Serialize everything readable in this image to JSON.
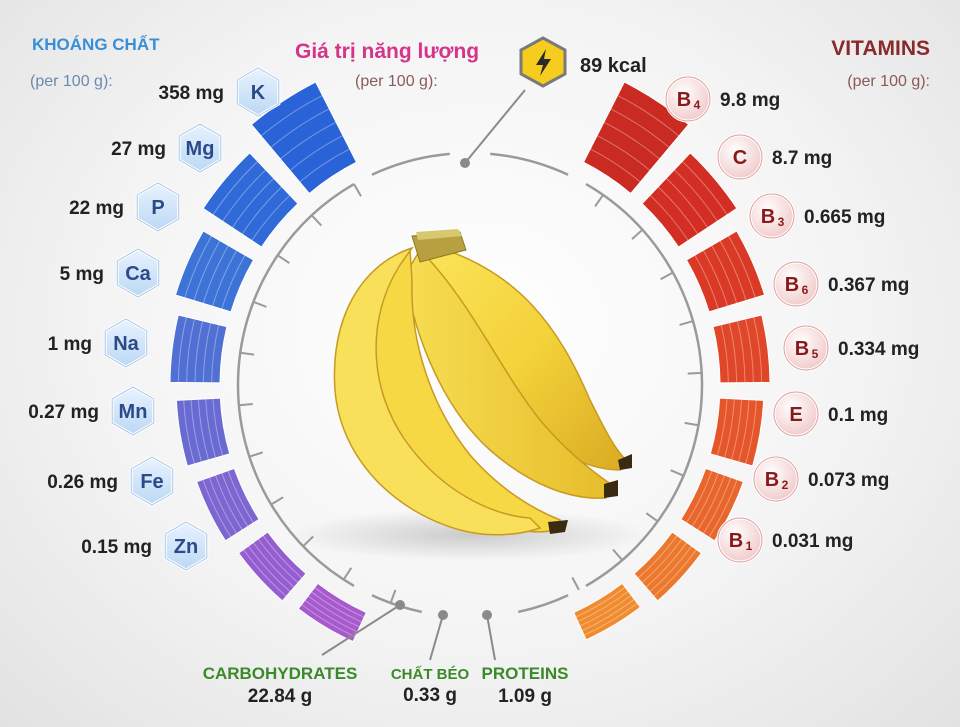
{
  "minerals": {
    "title": "KHOÁNG CHẤT",
    "subtitle": "(per 100 g):",
    "items": [
      {
        "symbol": "K",
        "amount": "358 mg"
      },
      {
        "symbol": "Mg",
        "amount": "27 mg"
      },
      {
        "symbol": "P",
        "amount": "22 mg"
      },
      {
        "symbol": "Ca",
        "amount": "5 mg"
      },
      {
        "symbol": "Na",
        "amount": "1 mg"
      },
      {
        "symbol": "Mn",
        "amount": "0.27 mg"
      },
      {
        "symbol": "Fe",
        "amount": "0.26 mg"
      },
      {
        "symbol": "Zn",
        "amount": "0.15 mg"
      }
    ]
  },
  "energy": {
    "title": "Giá trị năng lượng",
    "subtitle": "(per 100 g):",
    "value": "89 kcal",
    "icon": "lightning-icon"
  },
  "vitamins": {
    "title": "VITAMINS",
    "subtitle": "(per 100 g):",
    "items": [
      {
        "letter": "B",
        "sub": "4",
        "amount": "9.8 mg"
      },
      {
        "letter": "C",
        "sub": "",
        "amount": "8.7 mg"
      },
      {
        "letter": "B",
        "sub": "3",
        "amount": "0.665 mg"
      },
      {
        "letter": "B",
        "sub": "6",
        "amount": "0.367 mg"
      },
      {
        "letter": "B",
        "sub": "5",
        "amount": "0.334 mg"
      },
      {
        "letter": "E",
        "sub": "",
        "amount": "0.1 mg"
      },
      {
        "letter": "B",
        "sub": "2",
        "amount": "0.073 mg"
      },
      {
        "letter": "B",
        "sub": "1",
        "amount": "0.031 mg"
      }
    ]
  },
  "macros": [
    {
      "name": "CARBOHYDRATES",
      "value": "22.84 g"
    },
    {
      "name": "CHẤT BÉO",
      "value": "0.33 g"
    },
    {
      "name": "PROTEINS",
      "value": "1.09 g"
    }
  ],
  "colors": {
    "mineral_title": "#3a8ed8",
    "energy_title": "#d6338a",
    "vitamin_title": "#8a2a2a",
    "macro_green": "#3a8a2a",
    "mineral_bars": [
      "#2a62d8",
      "#2f6ad8",
      "#3d73d6",
      "#5170d4",
      "#6a6bd2",
      "#7d66d0",
      "#955ed0",
      "#a75acd"
    ],
    "vitamin_bars": [
      "#c92a22",
      "#d22e23",
      "#da3926",
      "#e04628",
      "#e5552a",
      "#e8652b",
      "#ec782d",
      "#f08c2f"
    ]
  }
}
